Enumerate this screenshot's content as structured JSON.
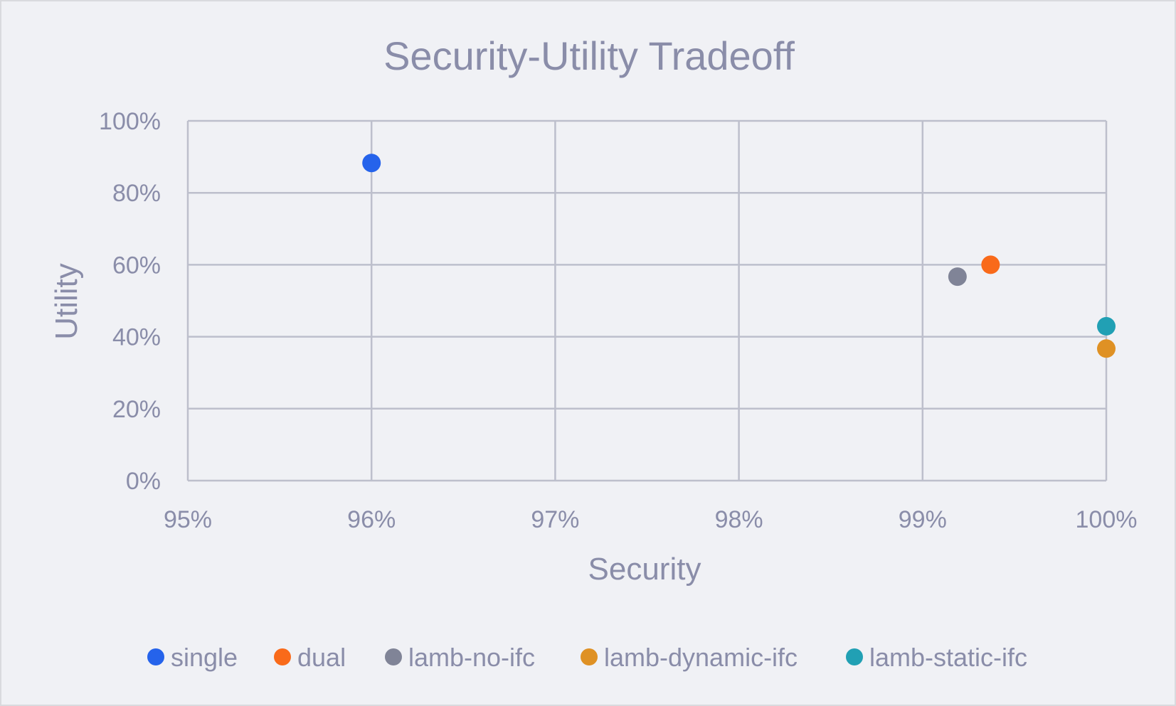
{
  "chart_data": {
    "type": "scatter",
    "title": "Security-Utility Tradeoff",
    "xlabel": "Security",
    "ylabel": "Utility",
    "xlim": [
      95,
      100
    ],
    "ylim": [
      0,
      100
    ],
    "x_ticks": [
      "95%",
      "96%",
      "97%",
      "98%",
      "99%",
      "100%"
    ],
    "y_ticks": [
      "0%",
      "20%",
      "40%",
      "60%",
      "80%",
      "100%"
    ],
    "grid": true,
    "legend_position": "bottom",
    "series": [
      {
        "name": "single",
        "color": "#2563eb",
        "points": [
          {
            "x": 96.0,
            "y": 88.3
          }
        ]
      },
      {
        "name": "dual",
        "color": "#f96a1a",
        "points": [
          {
            "x": 99.37,
            "y": 60.0
          }
        ]
      },
      {
        "name": "lamb-no-ifc",
        "color": "#808497",
        "points": [
          {
            "x": 99.19,
            "y": 56.7
          }
        ]
      },
      {
        "name": "lamb-dynamic-ifc",
        "color": "#df9124",
        "points": [
          {
            "x": 100.0,
            "y": 36.7
          }
        ]
      },
      {
        "name": "lamb-static-ifc",
        "color": "#21a0b4",
        "points": [
          {
            "x": 100.0,
            "y": 42.9
          }
        ]
      }
    ]
  }
}
